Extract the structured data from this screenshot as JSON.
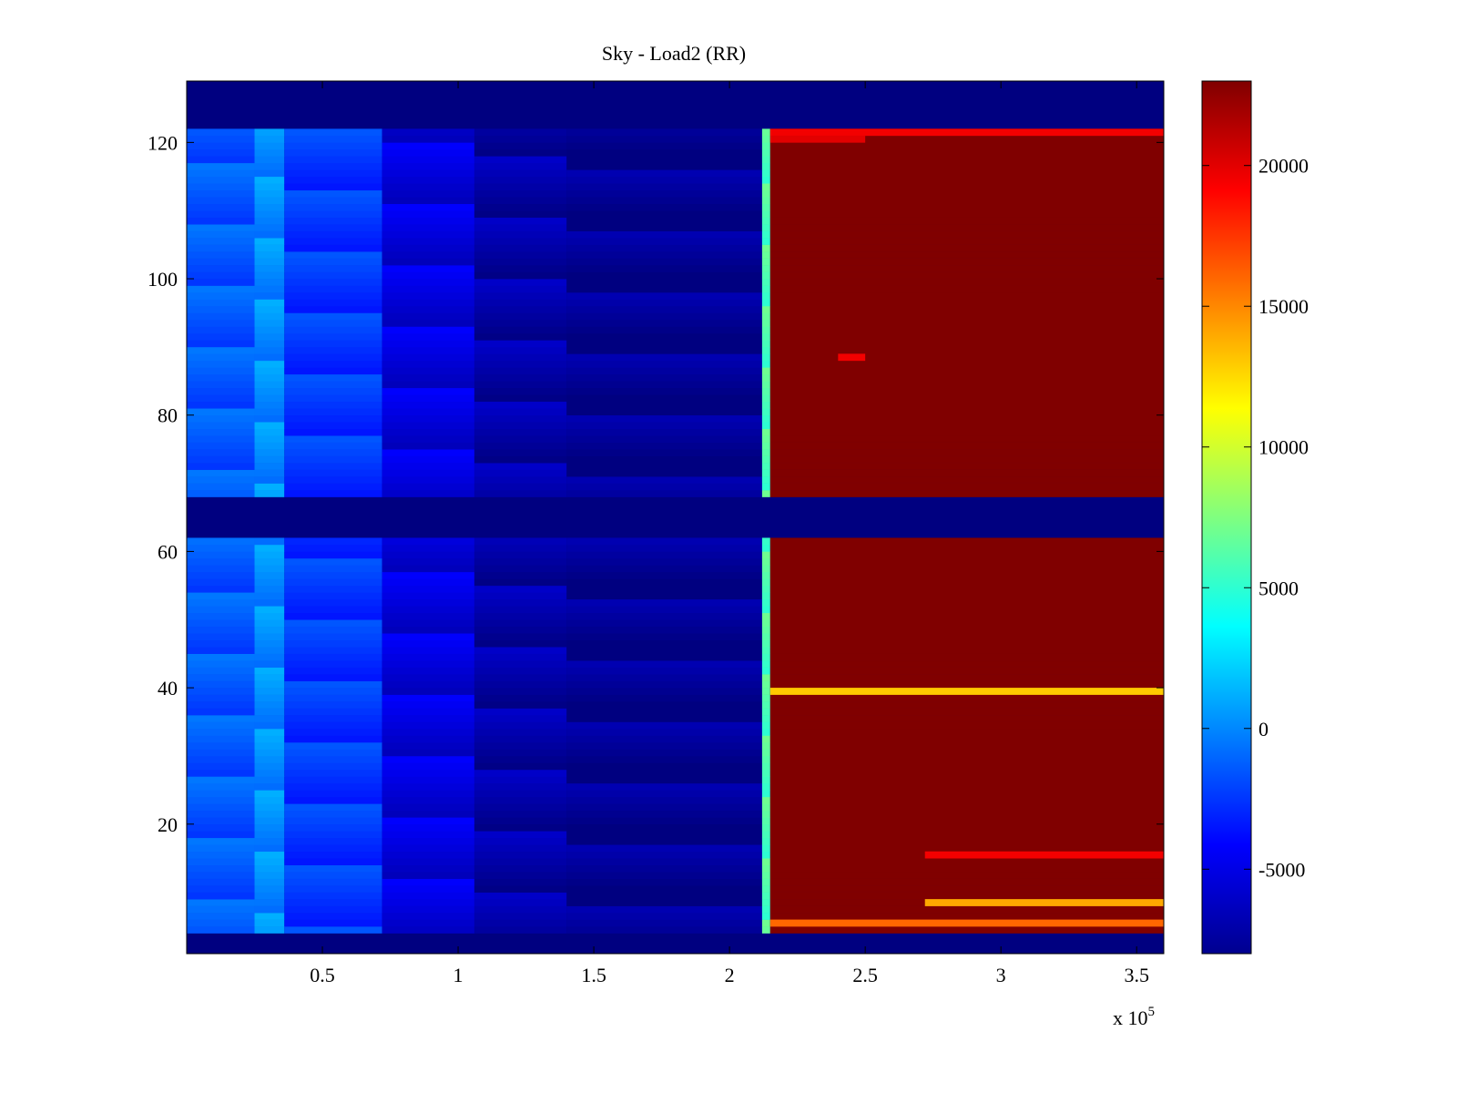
{
  "chart_data": {
    "type": "heatmap",
    "title": "Sky - Load2 (RR)",
    "xlabel": "",
    "ylabel": "",
    "x_multiplier_label": "x 10",
    "x_multiplier_exponent": "5",
    "xlim": [
      0,
      3.6
    ],
    "ylim": [
      1,
      129
    ],
    "x_ticks": [
      0.5,
      1,
      1.5,
      2,
      2.5,
      3,
      3.5
    ],
    "x_tick_labels": [
      "0.5",
      "1",
      "1.5",
      "2",
      "2.5",
      "3",
      "3.5"
    ],
    "y_ticks": [
      20,
      40,
      60,
      80,
      100,
      120
    ],
    "y_tick_labels": [
      "20",
      "40",
      "60",
      "80",
      "100",
      "120"
    ],
    "colorbar": {
      "colormap": "jet",
      "range": [
        -8000,
        23000
      ],
      "ticks": [
        -5000,
        0,
        5000,
        10000,
        15000,
        20000
      ],
      "tick_labels": [
        "-5000",
        "0",
        "5000",
        "10000",
        "15000",
        "20000"
      ]
    },
    "empty_row_bands": [
      [
        1,
        4
      ],
      [
        62,
        68
      ],
      [
        122,
        129
      ]
    ],
    "x_segments": [
      {
        "x_start": 0.0,
        "x_end": 0.25,
        "value": -1500
      },
      {
        "x_start": 0.25,
        "x_end": 0.36,
        "value": 200
      },
      {
        "x_start": 0.36,
        "x_end": 0.72,
        "value": -2500
      },
      {
        "x_start": 0.72,
        "x_end": 1.06,
        "value": -5200
      },
      {
        "x_start": 1.06,
        "x_end": 1.4,
        "value": -6800
      },
      {
        "x_start": 1.4,
        "x_end": 2.12,
        "value": -7500
      },
      {
        "x_start": 2.12,
        "x_end": 2.15,
        "value": 6000
      },
      {
        "x_start": 2.15,
        "x_end": 3.6,
        "value": 23000
      }
    ],
    "anomaly_rows": [
      {
        "row": 39,
        "x_start": 2.15,
        "x_end": 3.6,
        "value": 13000
      },
      {
        "row": 8,
        "x_start": 2.72,
        "x_end": 3.6,
        "value": 14000
      },
      {
        "row": 5,
        "x_start": 2.15,
        "x_end": 3.6,
        "value": 16000
      },
      {
        "row": 15,
        "x_start": 2.72,
        "x_end": 3.6,
        "value": 19500
      },
      {
        "row": 121,
        "x_start": 2.15,
        "x_end": 3.6,
        "value": 19500
      },
      {
        "row": 120,
        "x_start": 2.15,
        "x_end": 2.5,
        "value": 20000
      },
      {
        "row": 88,
        "x_start": 2.4,
        "x_end": 2.5,
        "value": 19500
      }
    ],
    "grid": false,
    "legend": "none"
  }
}
